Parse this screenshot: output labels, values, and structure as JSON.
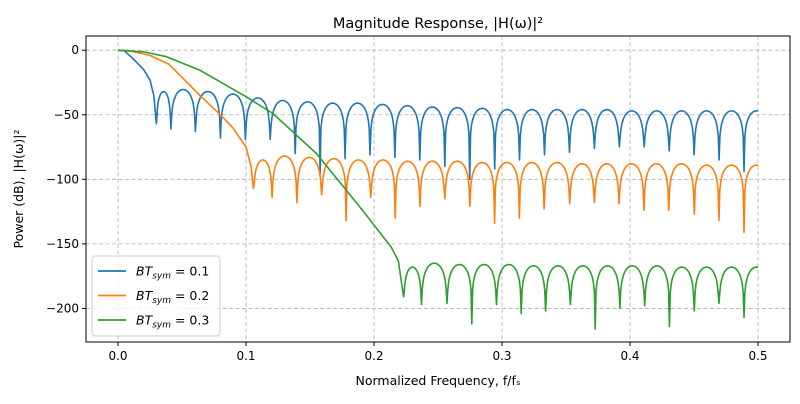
{
  "chart_data": {
    "type": "line",
    "title": "Magnitude Response, |H(ω)|²",
    "xlabel": "Normalized Frequency, f/fₛ",
    "ylabel": "Power (dB), |H(ω)|²",
    "xlim": [
      -0.025,
      0.525
    ],
    "ylim": [
      -226,
      11
    ],
    "xticks": [
      0.0,
      0.1,
      0.2,
      0.3,
      0.4,
      0.5
    ],
    "xtick_labels": [
      "0.0",
      "0.1",
      "0.2",
      "0.3",
      "0.4",
      "0.5"
    ],
    "yticks": [
      0,
      -50,
      -100,
      -150,
      -200
    ],
    "ytick_labels": [
      "0",
      "−50",
      "−100",
      "−150",
      "−200"
    ],
    "grid": true,
    "legend_position": "bottom-left",
    "series": [
      {
        "name": "BT_sym = 0.1",
        "legend_main": "BT",
        "legend_sub": "sym",
        "legend_value": " = 0.1",
        "color": "#1f77b4",
        "mainlobe": [
          [
            0,
            0
          ],
          [
            0.005,
            -0.5
          ],
          [
            0.0117,
            -6.5
          ],
          [
            0.02,
            -15
          ],
          [
            0.025,
            -23
          ],
          [
            0.028,
            -35
          ],
          [
            0.03,
            -57
          ]
        ],
        "nulls": [
          0.03,
          0.0413,
          0.0605,
          0.08,
          0.0995,
          0.1189,
          0.1384,
          0.1579,
          0.1774,
          0.1969,
          0.2163,
          0.2358,
          0.2553,
          0.2748,
          0.2943,
          0.3137,
          0.3332,
          0.3527,
          0.3722,
          0.3917,
          0.4111,
          0.4306,
          0.4501,
          0.4696,
          0.4891
        ],
        "null_depths": [
          -57,
          -61,
          -63,
          -68,
          -69,
          -69,
          -80,
          -96,
          -84,
          -81,
          -83,
          -85,
          -90,
          -100,
          -92,
          -85,
          -81,
          -79,
          -76,
          -75,
          -75,
          -78,
          -81,
          -85,
          -94
        ],
        "sidelobe_peaks": [
          -32,
          -30.5,
          -32,
          -34,
          -37,
          -39,
          -40,
          -41,
          -41,
          -42,
          -43,
          -44,
          -44.5,
          -45,
          -46,
          -46,
          -46,
          -46,
          -46,
          -47,
          -47,
          -47,
          -47,
          -47,
          -47
        ],
        "end": [
          0.5,
          -47
        ]
      },
      {
        "name": "BT_sym = 0.2",
        "legend_main": "BT",
        "legend_sub": "sym",
        "legend_value": " = 0.2",
        "color": "#ff7f0e",
        "mainlobe": [
          [
            0,
            0
          ],
          [
            0.01,
            -0.7
          ],
          [
            0.025,
            -4
          ],
          [
            0.04,
            -11
          ],
          [
            0.064,
            -35
          ],
          [
            0.08,
            -50
          ],
          [
            0.0896,
            -60
          ],
          [
            0.1,
            -75
          ],
          [
            0.104,
            -90
          ],
          [
            0.1058,
            -107
          ]
        ],
        "nulls": [
          0.1058,
          0.1204,
          0.1398,
          0.1591,
          0.1782,
          0.1975,
          0.2166,
          0.2359,
          0.2553,
          0.2749,
          0.2942,
          0.3136,
          0.3329,
          0.3529,
          0.3722,
          0.3915,
          0.4109,
          0.4303,
          0.4502,
          0.4695,
          0.4891
        ],
        "null_depths": [
          -107,
          -114,
          -118,
          -112,
          -132,
          -114,
          -130,
          -121,
          -115,
          -121,
          -134,
          -130,
          -123,
          -119,
          -118,
          -119,
          -124,
          -124,
          -127,
          -132,
          -141
        ],
        "sidelobe_peaks": [
          -85,
          -82,
          -83,
          -84,
          -85,
          -85,
          -86,
          -86,
          -86,
          -87,
          -87,
          -87,
          -87,
          -88,
          -88,
          -88,
          -88,
          -88,
          -89,
          -89,
          -89
        ],
        "end": [
          0.5,
          -89
        ]
      },
      {
        "name": "BT_sym = 0.3",
        "legend_main": "BT",
        "legend_sub": "sym",
        "legend_value": " = 0.3",
        "color": "#2ca02c",
        "mainlobe": [
          [
            0,
            0
          ],
          [
            0.02,
            -1.3
          ],
          [
            0.038,
            -5
          ],
          [
            0.064,
            -15.5
          ],
          [
            0.1,
            -36
          ],
          [
            0.121,
            -49
          ],
          [
            0.155,
            -80
          ],
          [
            0.178,
            -108
          ],
          [
            0.191,
            -124
          ],
          [
            0.2134,
            -152.5
          ],
          [
            0.219,
            -163
          ],
          [
            0.2231,
            -191
          ]
        ],
        "nulls": [
          0.2231,
          0.2371,
          0.257,
          0.2764,
          0.2957,
          0.315,
          0.3341,
          0.3534,
          0.3728,
          0.3921,
          0.4115,
          0.4308,
          0.4502,
          0.4695,
          0.4891
        ],
        "null_depths": [
          -191,
          -197,
          -196,
          -212,
          -197,
          -204,
          -202,
          -197,
          -216,
          -200,
          -198,
          -214,
          -202,
          -196,
          -207
        ],
        "sidelobe_peaks": [
          -168,
          -165,
          -166,
          -166,
          -166,
          -167,
          -167,
          -167,
          -167,
          -167,
          -167,
          -168,
          -168,
          -168,
          -168
        ],
        "end": [
          0.5,
          -168
        ]
      }
    ]
  }
}
